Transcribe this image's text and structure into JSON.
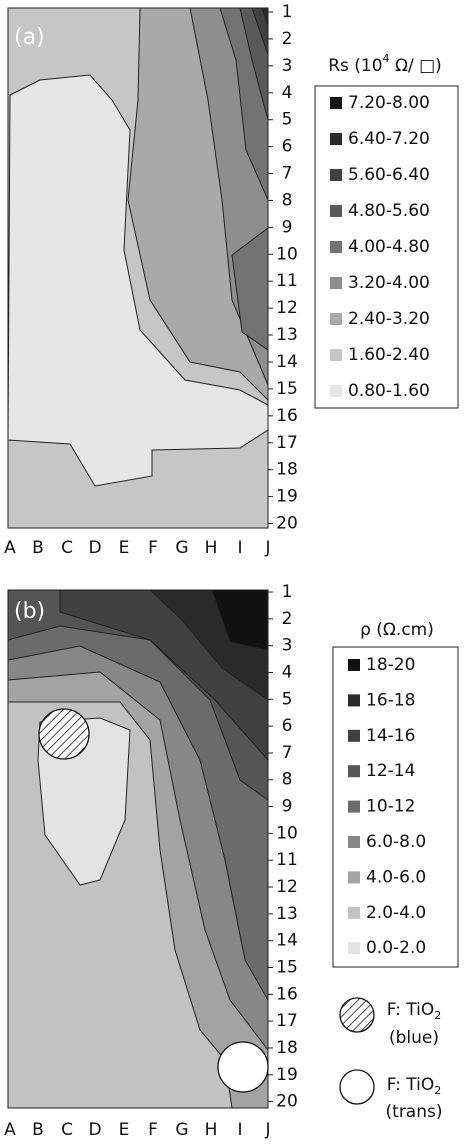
{
  "chart_data": [
    {
      "type": "contour",
      "panel_label": "(a)",
      "legend_title": [
        "Rs (10",
        "4",
        " Ω/ □)"
      ],
      "categories": [
        "A",
        "B",
        "C",
        "D",
        "E",
        "F",
        "G",
        "H",
        "I",
        "J"
      ],
      "rows": [
        1,
        2,
        3,
        4,
        5,
        6,
        7,
        8,
        9,
        10,
        11,
        12,
        13,
        14,
        15,
        16,
        17,
        18,
        19,
        20
      ],
      "levels": [
        {
          "label": "7.20-8.00",
          "color": "#111111"
        },
        {
          "label": "6.40-7.20",
          "color": "#2a2a2a"
        },
        {
          "label": "5.60-6.40",
          "color": "#404040"
        },
        {
          "label": "4.80-5.60",
          "color": "#5a5a5a"
        },
        {
          "label": "4.00-4.80",
          "color": "#737373"
        },
        {
          "label": "3.20-4.00",
          "color": "#8e8e8e"
        },
        {
          "label": "2.40-3.20",
          "color": "#a9a9a9"
        },
        {
          "label": "1.60-2.40",
          "color": "#c6c6c6"
        },
        {
          "label": "0.80-1.60",
          "color": "#e6e6e6"
        }
      ]
    },
    {
      "type": "contour",
      "panel_label": "(b)",
      "legend_title": [
        "ρ (Ω.cm)"
      ],
      "categories": [
        "A",
        "B",
        "C",
        "D",
        "E",
        "F",
        "G",
        "H",
        "I",
        "J"
      ],
      "rows": [
        1,
        2,
        3,
        4,
        5,
        6,
        7,
        8,
        9,
        10,
        11,
        12,
        13,
        14,
        15,
        16,
        17,
        18,
        19,
        20
      ],
      "levels": [
        {
          "label": "18-20",
          "color": "#111111"
        },
        {
          "label": "16-18",
          "color": "#2a2a2a"
        },
        {
          "label": "14-16",
          "color": "#404040"
        },
        {
          "label": "12-14",
          "color": "#555555"
        },
        {
          "label": "10-12",
          "color": "#6b6b6b"
        },
        {
          "label": "6.0-8.0",
          "color": "#878787"
        },
        {
          "label": "4.0-6.0",
          "color": "#a3a3a3"
        },
        {
          "label": "2.0-4.0",
          "color": "#c2c2c2"
        },
        {
          "label": "0.0-2.0",
          "color": "#e3e3e3"
        }
      ],
      "annotations": [
        {
          "label": [
            "F: TiO",
            "2"
          ],
          "sublabel": "(blue)",
          "style": "hatched"
        },
        {
          "label": [
            "F: TiO",
            "2"
          ],
          "sublabel": "(trans)",
          "style": "white"
        }
      ]
    }
  ]
}
